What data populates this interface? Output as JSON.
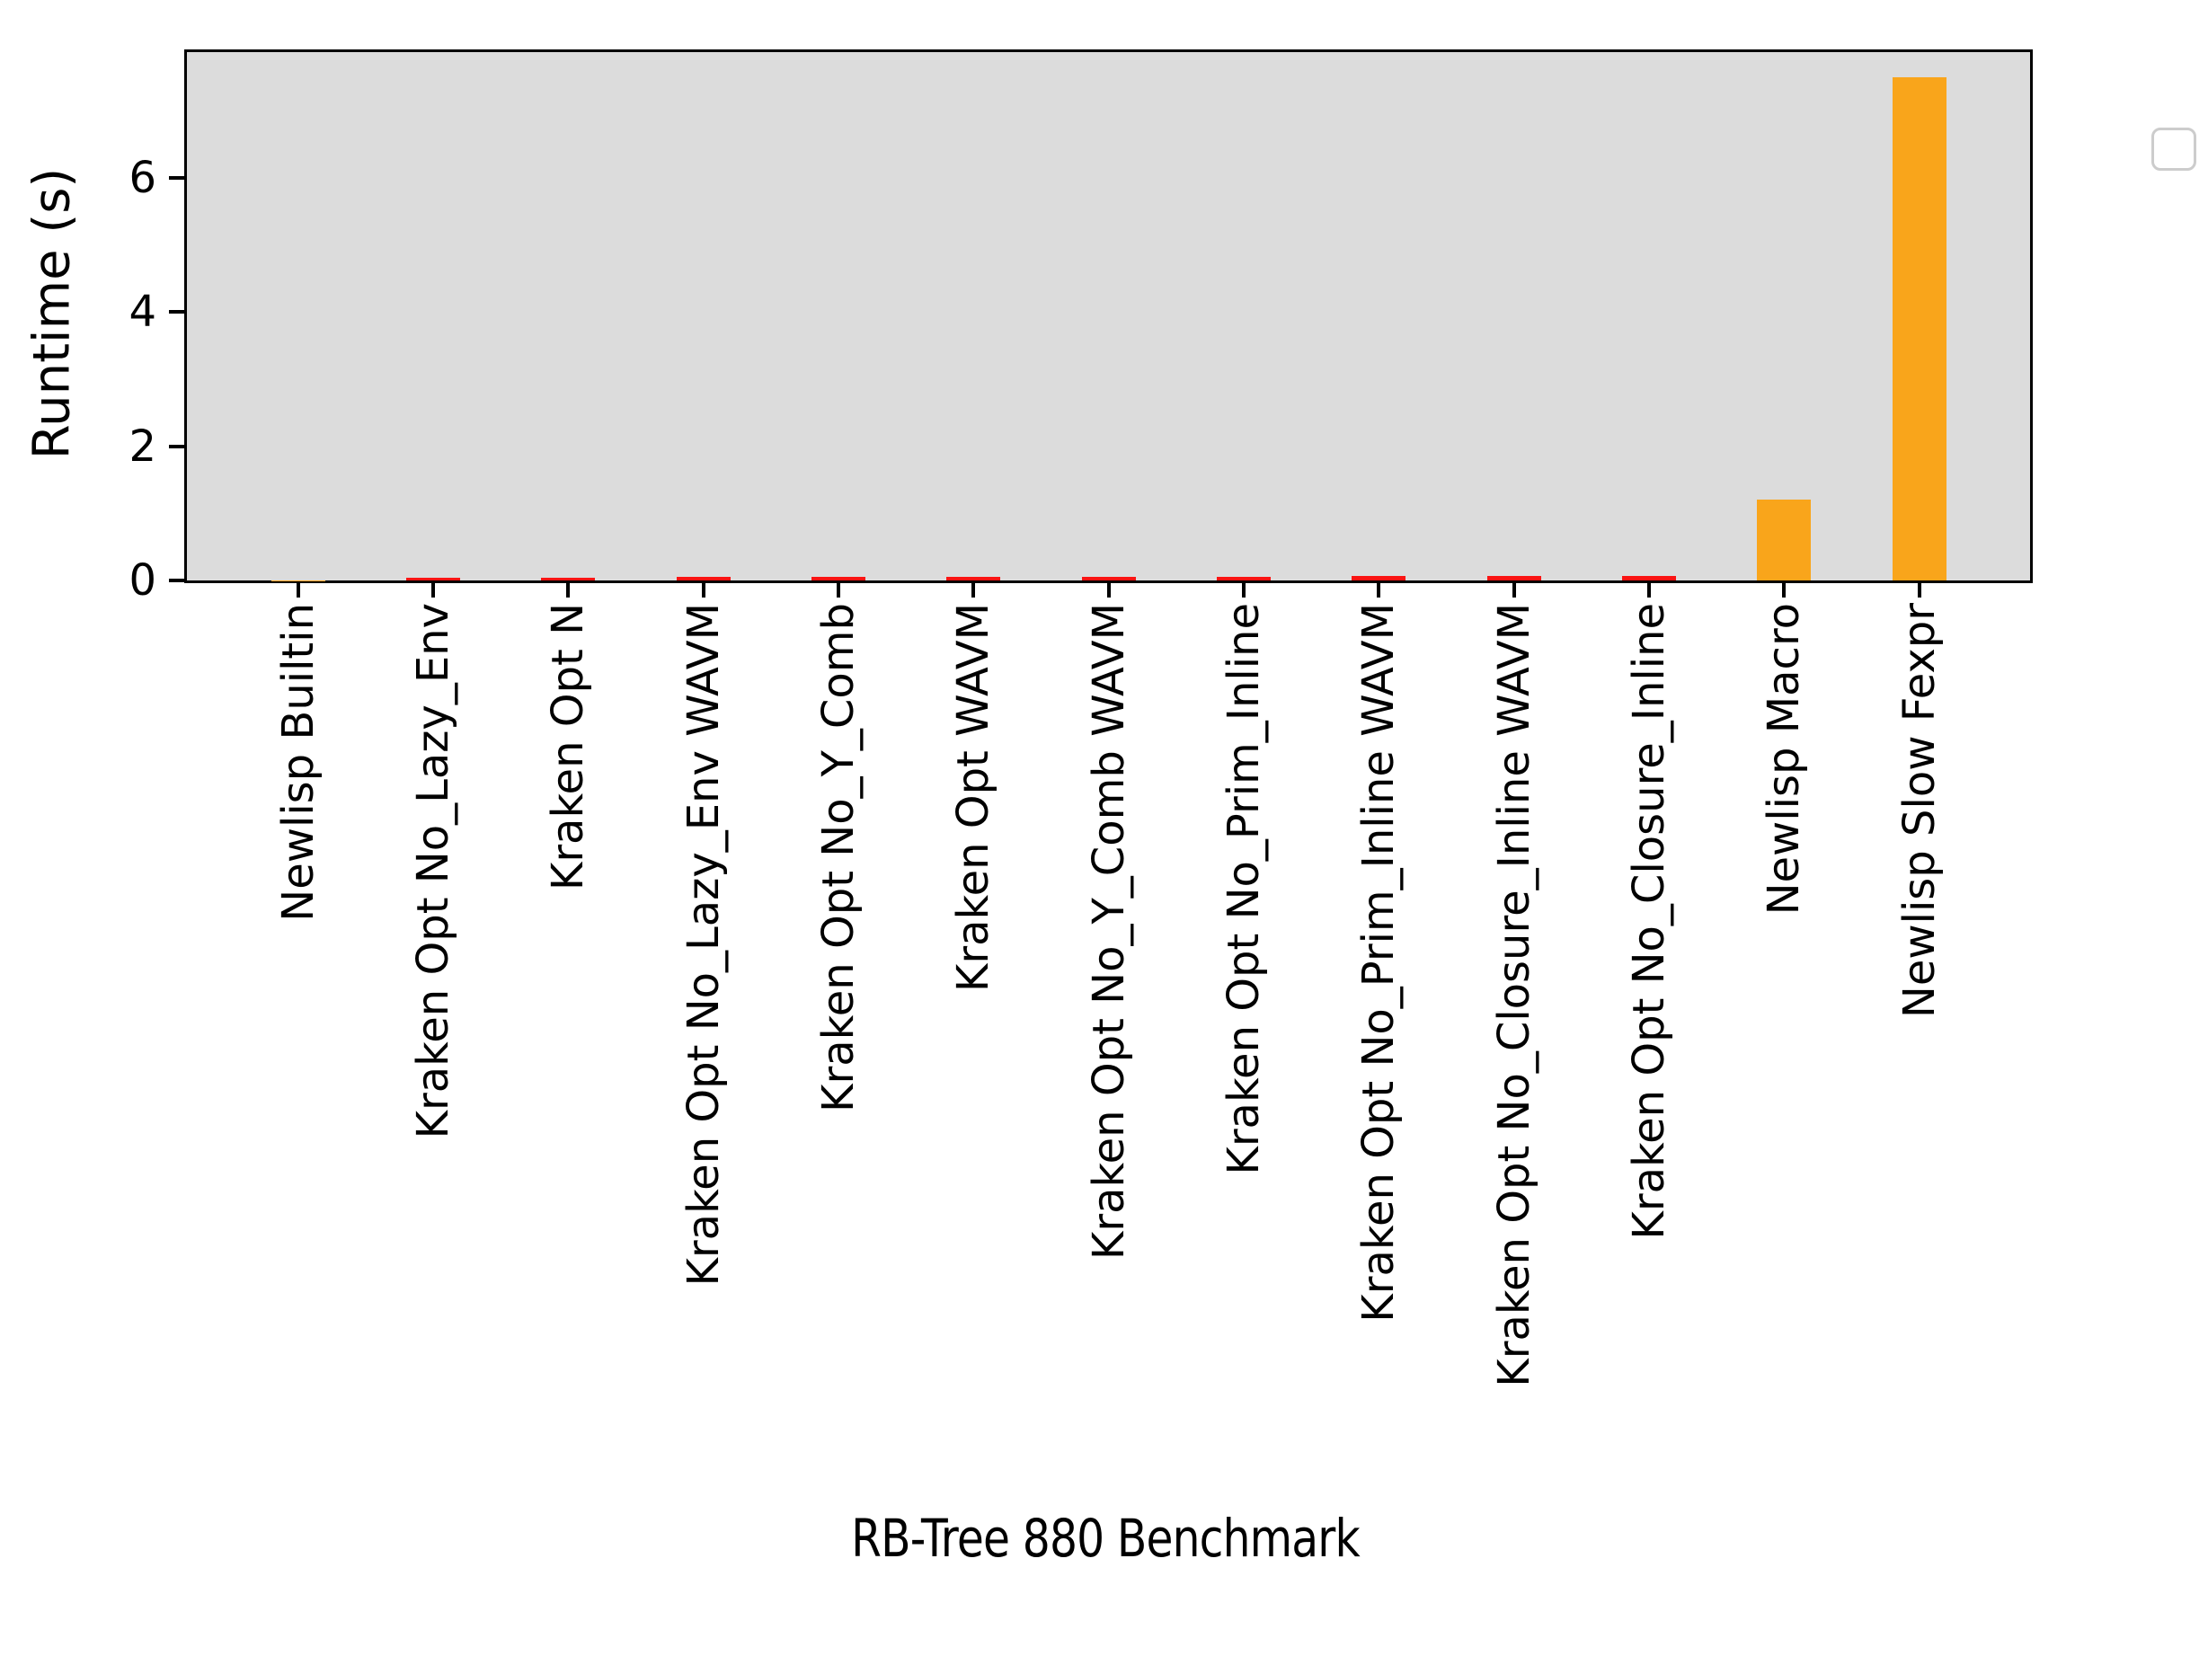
{
  "figure": {
    "xlabel": "RB-Tree 880 Benchmark",
    "ylabel": "Runtime (s)"
  },
  "chart_data": {
    "type": "bar",
    "title": "",
    "xlabel": "RB-Tree 880 Benchmark",
    "ylabel": "Runtime (s)",
    "categories": [
      "Newlisp Builtin",
      "Kraken Opt No_Lazy_Env",
      "Kraken Opt N",
      "Kraken Opt No_Lazy_Env WAVM",
      "Kraken Opt No_Y_Comb",
      "Kraken Opt WAVM",
      "Kraken Opt No_Y_Comb WAVM",
      "Kraken Opt No_Prim_Inline",
      "Kraken Opt No_Prim_Inline WAVM",
      "Kraken Opt No_Closure_Inline WAVM",
      "Kraken Opt No_Closure_Inline",
      "Newlisp Macro",
      "Newlisp Slow Fexpr"
    ],
    "values": [
      0.005,
      0.04,
      0.04,
      0.05,
      0.05,
      0.05,
      0.05,
      0.06,
      0.07,
      0.07,
      0.07,
      1.2,
      7.5
    ],
    "bar_colors": [
      "#f9a51b",
      "#fb1413",
      "#fb1413",
      "#fb1413",
      "#fb1413",
      "#fb1413",
      "#fb1413",
      "#fb1413",
      "#fb1413",
      "#fb1413",
      "#fb1413",
      "#f9a51b",
      "#f9a51b"
    ],
    "series_colors": {
      "kraken": "#fb1413",
      "newlisp": "#f9a51b"
    },
    "yticks": [
      0,
      2,
      4,
      6
    ],
    "ylim": [
      0,
      7.875
    ],
    "bar_width_fraction": 0.4,
    "grid": false,
    "plot_bg_color": "#dcdcdc",
    "legend": {
      "visible": true,
      "entries": [],
      "position": "upper right"
    }
  }
}
